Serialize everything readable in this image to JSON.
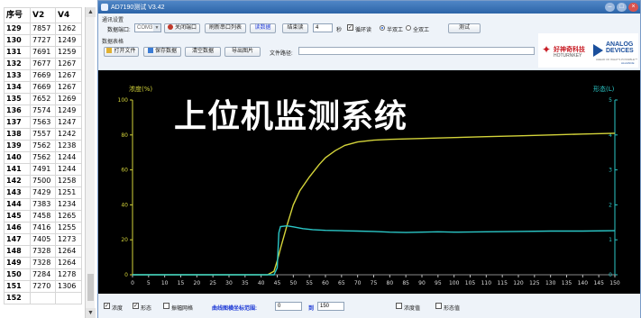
{
  "sheet": {
    "headers": [
      "序号",
      "V2",
      "V4"
    ],
    "rows": [
      [
        "129",
        "7857",
        "1262"
      ],
      [
        "130",
        "7727",
        "1249"
      ],
      [
        "131",
        "7691",
        "1259"
      ],
      [
        "132",
        "7677",
        "1267"
      ],
      [
        "133",
        "7669",
        "1267"
      ],
      [
        "134",
        "7669",
        "1267"
      ],
      [
        "135",
        "7652",
        "1269"
      ],
      [
        "136",
        "7574",
        "1249"
      ],
      [
        "137",
        "7563",
        "1247"
      ],
      [
        "138",
        "7557",
        "1242"
      ],
      [
        "139",
        "7562",
        "1238"
      ],
      [
        "140",
        "7562",
        "1244"
      ],
      [
        "141",
        "7491",
        "1244"
      ],
      [
        "142",
        "7500",
        "1258"
      ],
      [
        "143",
        "7429",
        "1251"
      ],
      [
        "144",
        "7383",
        "1234"
      ],
      [
        "145",
        "7458",
        "1265"
      ],
      [
        "146",
        "7416",
        "1255"
      ],
      [
        "147",
        "7405",
        "1273"
      ],
      [
        "148",
        "7328",
        "1264"
      ],
      [
        "149",
        "7328",
        "1264"
      ],
      [
        "150",
        "7284",
        "1278"
      ],
      [
        "151",
        "7270",
        "1306"
      ],
      [
        "152",
        "",
        ""
      ]
    ]
  },
  "window": {
    "title": "AD7190测试 V3.42"
  },
  "controls": {
    "comm_group": "通讯设置",
    "port_label": "数据端口:",
    "port_value": "COM3",
    "close_port": "关闭端口",
    "refresh_ports": "刷新串口列表",
    "read_data": "读数据",
    "end_read": "结束读",
    "interval_value": "4",
    "interval_unit": "秒",
    "loop_read": "循环读",
    "half_duplex": "半双工",
    "full_duplex": "全双工",
    "test": "测试",
    "data_group": "数据表格",
    "open_file": "打开文件",
    "save_data": "保存数据",
    "clear_data": "清空数据",
    "export_image": "导出图片",
    "file_path_label": "文件路径:"
  },
  "logos": {
    "hw_name": "好神奇科技",
    "hw_sub": "HOTURNKEY",
    "adi_line1": "ANALOG",
    "adi_line2": "DEVICES",
    "adi_tag": "AHEAD OF WHAT'S POSSIBLE™",
    "adi_alliance": "ALLIANCE"
  },
  "overlay_text": "上位机监测系统",
  "chart_data": {
    "type": "line",
    "title": "",
    "left_axis_label": "浓度(%)",
    "right_axis_label": "形态(L)",
    "xlim": [
      0,
      150
    ],
    "x_ticks": [
      0,
      5,
      10,
      15,
      20,
      25,
      30,
      35,
      40,
      45,
      50,
      55,
      60,
      65,
      70,
      75,
      80,
      85,
      90,
      95,
      100,
      105,
      110,
      115,
      120,
      125,
      130,
      135,
      140,
      145,
      150
    ],
    "ylim_left": [
      0,
      100
    ],
    "y_ticks_left": [
      0,
      20,
      40,
      60,
      80,
      100
    ],
    "ylim_right": [
      0,
      5
    ],
    "y_ticks_right": [
      0,
      1,
      2,
      3,
      4,
      5
    ],
    "grid": false,
    "series": [
      {
        "name": "浓度",
        "axis": "left",
        "color": "#d4d43a",
        "x": [
          0,
          40,
          42,
          44,
          45,
          46,
          48,
          50,
          52,
          55,
          58,
          60,
          63,
          66,
          70,
          75,
          80,
          90,
          100,
          110,
          120,
          130,
          140,
          150
        ],
        "y": [
          0,
          0,
          0,
          2,
          8,
          15,
          28,
          40,
          48,
          56,
          63,
          67,
          71,
          74,
          76,
          77,
          77.5,
          78,
          78.5,
          79,
          79.5,
          80,
          80.5,
          81
        ]
      },
      {
        "name": "形态",
        "axis": "right",
        "color": "#2bc7c7",
        "x": [
          0,
          44,
          45,
          45.5,
          46,
          48,
          50,
          53,
          56,
          60,
          65,
          70,
          75,
          80,
          85,
          90,
          95,
          100,
          110,
          120,
          130,
          140,
          150
        ],
        "y": [
          0,
          0,
          0.2,
          1.2,
          1.38,
          1.4,
          1.37,
          1.32,
          1.29,
          1.27,
          1.26,
          1.25,
          1.24,
          1.22,
          1.21,
          1.22,
          1.23,
          1.22,
          1.23,
          1.24,
          1.25,
          1.25,
          1.26
        ]
      }
    ]
  },
  "bottom": {
    "cb_concentration": "浓度",
    "cb_morphology": "形态",
    "cb_zoom_grid": "振幅网格",
    "range_label": "曲线图横坐标范围:",
    "range_from": "0",
    "range_to_label": "到",
    "range_to": "150",
    "cb_conc_value": "浓度值",
    "cb_morph_value": "形态值"
  },
  "colors": {
    "title_bar": "#2c64a8",
    "chart_bg": "#000000",
    "concentration": "#d4d43a",
    "morphology": "#2bc7c7"
  }
}
